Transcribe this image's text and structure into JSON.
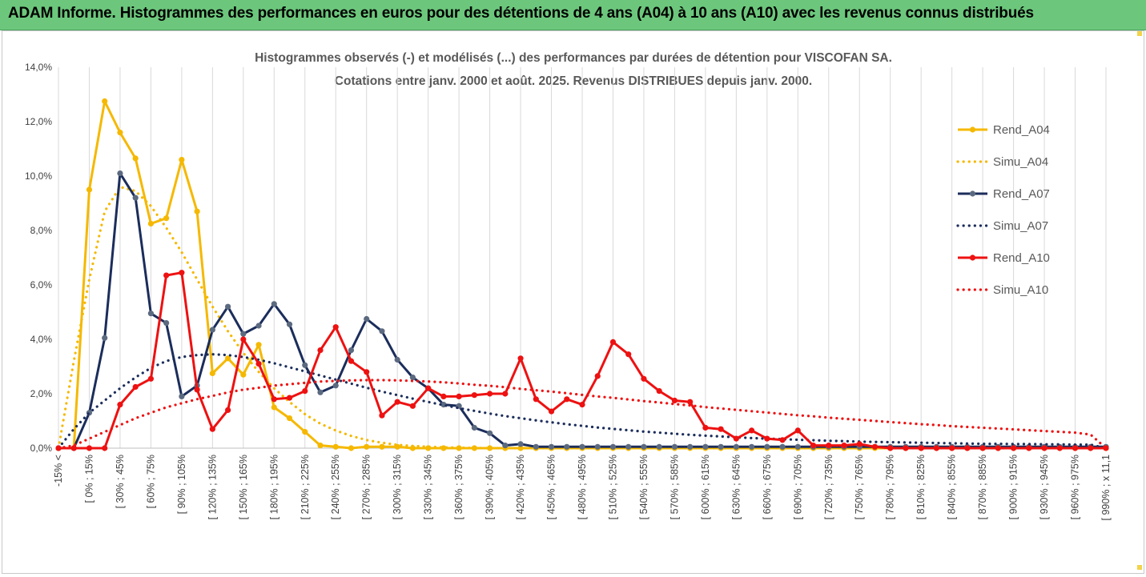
{
  "header": {
    "title": "ADAM Informe. Histogrammes des performances en euros pour des détentions de 4 ans (A04) à 10 ans (A10) avec les revenus connus distribués"
  },
  "colors": {
    "header_bg": "#6cc77c",
    "yellow": "#f5b800",
    "navy": "#1b2d5b",
    "red": "#ee1111",
    "grid": "#d9d9d9"
  },
  "chart_data": {
    "type": "line",
    "title_lines": [
      "Histogrammes observés (-) et modélisés (...) des performances par durées de détention pour VISCOFAN SA.",
      "Cotations entre janv. 2000 et août. 2025. Revenus DISTRIBUES depuis janv. 2000."
    ],
    "xlabel": "",
    "ylabel": "",
    "ylim": [
      0,
      14
    ],
    "y_ticks": [
      "0,0%",
      "2,0%",
      "4,0%",
      "6,0%",
      "8,0%",
      "10,0%",
      "12,0%",
      "14,0%"
    ],
    "grid": "vertical",
    "legend_position": "right",
    "x_tick_labels": [
      "-15% <",
      "[ 0% ; 15%",
      "[ 30% ; 45%",
      "[ 60% ; 75%",
      "[ 90% ; 105%",
      "[ 120% ; 135%",
      "[ 150% ; 165%",
      "[ 180% ; 195%",
      "[ 210% ; 225%",
      "[ 240% ; 255%",
      "[ 270% ; 285%",
      "[ 300% ; 315%",
      "[ 330% ; 345%",
      "[ 360% ; 375%",
      "[ 390% ; 405%",
      "[ 420% ; 435%",
      "[ 450% ; 465%",
      "[ 480% ; 495%",
      "[ 510% ; 525%",
      "[ 540% ; 555%",
      "[ 570% ; 585%",
      "[ 600% ; 615%",
      "[ 630% ; 645%",
      "[ 660% ; 675%",
      "[ 690% ; 705%",
      "[ 720% ; 735%",
      "[ 750% ; 765%",
      "[ 780% ; 795%",
      "[ 810% ; 825%",
      "[ 840% ; 855%",
      "[ 870% ; 885%",
      "[ 900% ; 915%",
      "[ 930% ; 945%",
      "[ 960% ; 975%",
      "[ 990% ; x 11,1"
    ],
    "series": [
      {
        "name": "Rend_A04",
        "style": "solid",
        "color": "#f5b800",
        "values": [
          0.0,
          0.0,
          9.5,
          12.75,
          11.6,
          10.65,
          8.25,
          8.45,
          10.6,
          8.7,
          2.75,
          3.3,
          2.7,
          3.8,
          1.5,
          1.1,
          0.6,
          0.1,
          0.05,
          0.0,
          0.05,
          0.05,
          0.05,
          0.0,
          0.0,
          0.0,
          0.0,
          0.0,
          0.0,
          0.0,
          0.0,
          0.0,
          0.0,
          0.0,
          0.0,
          0.0,
          0.0,
          0.0,
          0.0,
          0.0,
          0.0,
          0.0,
          0.0,
          0.0,
          0.0,
          0.0,
          0.0,
          0.0,
          0.0,
          0.0,
          0.0,
          0.0,
          0.0,
          0.0,
          0.0,
          0.0,
          0.0,
          0.0,
          0.0,
          0.0,
          0.0,
          0.0,
          0.0,
          0.0,
          0.0,
          0.0,
          0.0,
          0.0,
          0.0
        ]
      },
      {
        "name": "Simu_A04",
        "style": "dotted",
        "color": "#f5b800",
        "values": [
          0.0,
          3.2,
          6.2,
          8.7,
          9.6,
          9.45,
          8.9,
          8.1,
          7.2,
          6.2,
          5.2,
          4.3,
          3.5,
          2.8,
          2.2,
          1.7,
          1.25,
          0.9,
          0.65,
          0.45,
          0.3,
          0.2,
          0.12,
          0.08,
          0.05,
          0.03,
          0.02,
          0.01,
          0.0,
          0.0,
          0.0,
          0.0,
          0.0,
          0.0,
          0.0,
          0.0,
          0.0,
          0.0,
          0.0,
          0.0,
          0.0,
          0.0,
          0.0,
          0.0,
          0.0,
          0.0,
          0.0,
          0.0,
          0.0,
          0.0,
          0.0,
          0.0,
          0.0,
          0.0,
          0.0,
          0.0,
          0.0,
          0.0,
          0.0,
          0.0,
          0.0,
          0.0,
          0.0,
          0.0,
          0.0,
          0.0,
          0.0,
          0.0,
          0.0
        ]
      },
      {
        "name": "Rend_A07",
        "style": "solid",
        "color": "#1b2d5b",
        "values": [
          0.0,
          0.0,
          1.3,
          4.05,
          10.1,
          9.2,
          4.95,
          4.6,
          1.9,
          2.3,
          4.35,
          5.2,
          4.2,
          4.5,
          5.3,
          4.55,
          3.05,
          2.05,
          2.3,
          3.6,
          4.75,
          4.3,
          3.25,
          2.6,
          2.2,
          1.6,
          1.55,
          0.75,
          0.55,
          0.1,
          0.15,
          0.05,
          0.05,
          0.05,
          0.05,
          0.05,
          0.05,
          0.05,
          0.05,
          0.05,
          0.05,
          0.05,
          0.05,
          0.05,
          0.05,
          0.05,
          0.05,
          0.05,
          0.05,
          0.05,
          0.05,
          0.05,
          0.05,
          0.05,
          0.05,
          0.05,
          0.05,
          0.05,
          0.05,
          0.05,
          0.05,
          0.05,
          0.05,
          0.05,
          0.05,
          0.05,
          0.05,
          0.05,
          0.05
        ]
      },
      {
        "name": "Simu_A07",
        "style": "dotted",
        "color": "#1b2d5b",
        "values": [
          0.0,
          0.7,
          1.3,
          1.75,
          2.2,
          2.6,
          2.95,
          3.2,
          3.35,
          3.42,
          3.45,
          3.42,
          3.35,
          3.25,
          3.12,
          2.97,
          2.82,
          2.67,
          2.52,
          2.37,
          2.22,
          2.08,
          1.95,
          1.82,
          1.7,
          1.58,
          1.47,
          1.37,
          1.27,
          1.18,
          1.1,
          1.02,
          0.95,
          0.88,
          0.82,
          0.76,
          0.71,
          0.66,
          0.61,
          0.57,
          0.53,
          0.49,
          0.46,
          0.43,
          0.4,
          0.37,
          0.35,
          0.33,
          0.31,
          0.29,
          0.27,
          0.26,
          0.24,
          0.23,
          0.22,
          0.21,
          0.2,
          0.19,
          0.18,
          0.17,
          0.16,
          0.16,
          0.15,
          0.15,
          0.14,
          0.14,
          0.13,
          0.13,
          0.0
        ]
      },
      {
        "name": "Rend_A10",
        "style": "solid",
        "color": "#ee1111",
        "values": [
          0.0,
          0.0,
          0.0,
          0.0,
          1.6,
          2.25,
          2.55,
          6.35,
          6.45,
          2.15,
          0.7,
          1.4,
          4.0,
          3.1,
          1.8,
          1.85,
          2.1,
          3.6,
          4.45,
          3.2,
          2.8,
          1.2,
          1.7,
          1.55,
          2.2,
          1.9,
          1.9,
          1.95,
          2.0,
          2.0,
          3.3,
          1.8,
          1.35,
          1.8,
          1.6,
          2.65,
          3.9,
          3.45,
          2.55,
          2.1,
          1.75,
          1.7,
          0.75,
          0.7,
          0.35,
          0.65,
          0.35,
          0.3,
          0.65,
          0.1,
          0.1,
          0.1,
          0.15,
          0.05,
          0.0,
          0.0,
          0.0,
          0.0,
          0.0,
          0.0,
          0.0,
          0.0,
          0.0,
          0.0,
          0.0,
          0.0,
          0.0,
          0.0,
          0.0
        ]
      },
      {
        "name": "Simu_A10",
        "style": "dotted",
        "color": "#ee1111",
        "values": [
          0.0,
          0.1,
          0.35,
          0.6,
          0.85,
          1.1,
          1.3,
          1.5,
          1.65,
          1.8,
          1.92,
          2.05,
          2.15,
          2.22,
          2.3,
          2.35,
          2.4,
          2.45,
          2.47,
          2.49,
          2.5,
          2.5,
          2.49,
          2.47,
          2.45,
          2.42,
          2.38,
          2.33,
          2.29,
          2.24,
          2.18,
          2.13,
          2.08,
          2.02,
          1.96,
          1.9,
          1.85,
          1.79,
          1.73,
          1.68,
          1.62,
          1.57,
          1.51,
          1.46,
          1.41,
          1.36,
          1.31,
          1.26,
          1.21,
          1.17,
          1.12,
          1.08,
          1.04,
          1.0,
          0.96,
          0.92,
          0.88,
          0.85,
          0.81,
          0.78,
          0.75,
          0.72,
          0.69,
          0.66,
          0.63,
          0.6,
          0.57,
          0.5,
          0.0
        ]
      }
    ]
  }
}
